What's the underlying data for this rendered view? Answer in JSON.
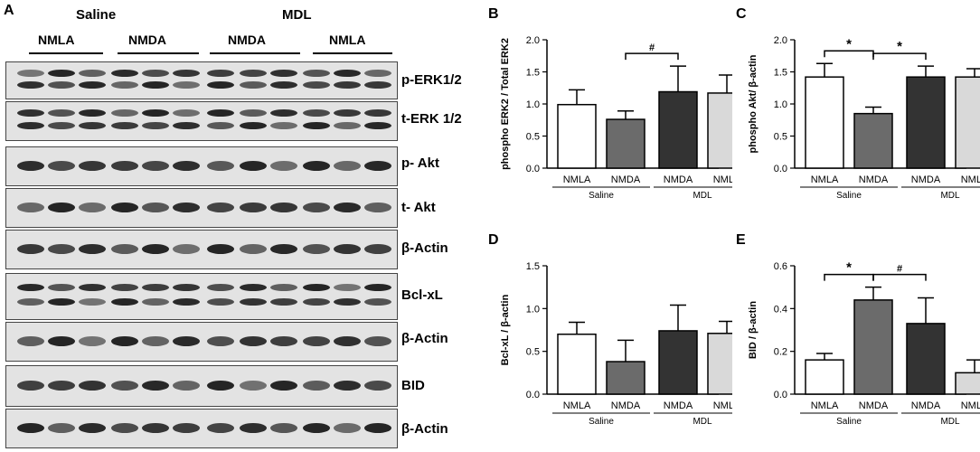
{
  "panel_a": {
    "letter": "A",
    "groups": [
      "Saline",
      "MDL"
    ],
    "lane_groups": [
      "NMLA",
      "NMDA",
      "NMDA",
      "NMLA"
    ],
    "rows": [
      "p-ERK1/2",
      "t-ERK 1/2",
      "p- Akt",
      "t- Akt",
      "β-Actin",
      "Bcl-xL",
      "β-Actin",
      "BID",
      "β-Actin"
    ]
  },
  "chart_data": [
    {
      "panel": "B",
      "type": "bar",
      "categories": [
        "NMLA",
        "NMDA",
        "NMDA",
        "NMLA"
      ],
      "group_labels": [
        "Saline",
        "MDL"
      ],
      "values": [
        0.99,
        0.76,
        1.19,
        1.17
      ],
      "errors": [
        0.23,
        0.13,
        0.4,
        0.28
      ],
      "colors": [
        "#ffffff",
        "#6b6b6b",
        "#333333",
        "#d9d9d9"
      ],
      "ylabel": "phospho ERK2 / Total ERK2",
      "ylim": [
        0,
        2.0
      ],
      "yticks": [
        "0.0",
        "0.5",
        "1.0",
        "1.5",
        "2.0"
      ],
      "significance": [
        {
          "from": 1,
          "to": 2,
          "mark": "#"
        }
      ]
    },
    {
      "panel": "C",
      "type": "bar",
      "categories": [
        "NMLA",
        "NMDA",
        "NMDA",
        "NMLA"
      ],
      "group_labels": [
        "Saline",
        "MDL"
      ],
      "values": [
        1.42,
        0.85,
        1.42,
        1.42
      ],
      "errors": [
        0.21,
        0.1,
        0.17,
        0.13
      ],
      "colors": [
        "#ffffff",
        "#6b6b6b",
        "#333333",
        "#d9d9d9"
      ],
      "ylabel": "phospho Akt/ β-actin",
      "ylim": [
        0,
        2.0
      ],
      "yticks": [
        "0.0",
        "0.5",
        "1.0",
        "1.5",
        "2.0"
      ],
      "significance": [
        {
          "from": 0,
          "to": 1,
          "mark": "*"
        },
        {
          "from": 1,
          "to": 2,
          "mark": "*"
        }
      ]
    },
    {
      "panel": "D",
      "type": "bar",
      "categories": [
        "NMLA",
        "NMDA",
        "NMDA",
        "NMLA"
      ],
      "group_labels": [
        "Saline",
        "MDL"
      ],
      "values": [
        0.7,
        0.38,
        0.74,
        0.71
      ],
      "errors": [
        0.14,
        0.25,
        0.3,
        0.14
      ],
      "colors": [
        "#ffffff",
        "#6b6b6b",
        "#333333",
        "#d9d9d9"
      ],
      "ylabel": "Bcl-xL / β-actin",
      "ylim": [
        0,
        1.5
      ],
      "yticks": [
        "0.0",
        "0.5",
        "1.0",
        "1.5"
      ],
      "significance": []
    },
    {
      "panel": "E",
      "type": "bar",
      "categories": [
        "NMLA",
        "NMDA",
        "NMDA",
        "NMLA"
      ],
      "group_labels": [
        "Saline",
        "MDL"
      ],
      "values": [
        0.16,
        0.44,
        0.33,
        0.1
      ],
      "errors": [
        0.03,
        0.06,
        0.12,
        0.06
      ],
      "colors": [
        "#ffffff",
        "#6b6b6b",
        "#333333",
        "#d9d9d9"
      ],
      "ylabel": "BID / β-actin",
      "ylim": [
        0,
        0.6
      ],
      "yticks": [
        "0.0",
        "0.2",
        "0.4",
        "0.6"
      ],
      "significance": [
        {
          "from": 0,
          "to": 1,
          "mark": "*"
        },
        {
          "from": 1,
          "to": 2,
          "mark": "#"
        }
      ]
    }
  ]
}
